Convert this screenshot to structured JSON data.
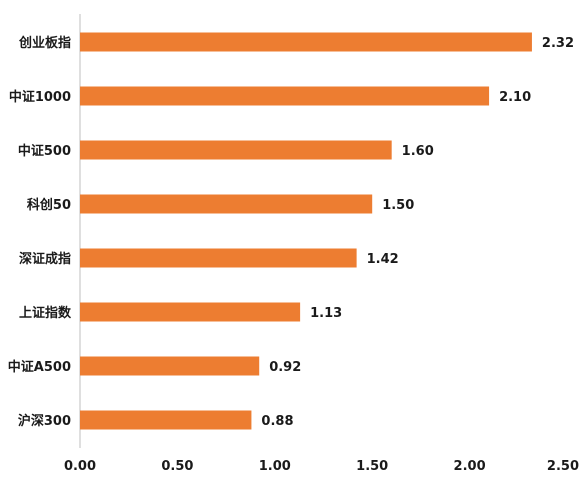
{
  "chart_data": {
    "type": "bar",
    "orientation": "horizontal",
    "title": "",
    "xlabel": "",
    "ylabel": "",
    "categories": [
      "创业板指",
      "中证1000",
      "中证500",
      "科创50",
      "深证成指",
      "上证指数",
      "中证A500",
      "沪深300"
    ],
    "values": [
      2.32,
      2.1,
      1.6,
      1.5,
      1.42,
      1.13,
      0.92,
      0.88
    ],
    "value_labels": [
      "2.32",
      "2.10",
      "1.60",
      "1.50",
      "1.42",
      "1.13",
      "0.92",
      "0.88"
    ],
    "xlim": [
      0,
      2.5
    ],
    "xticks": [
      0,
      0.5,
      1.0,
      1.5,
      2.0,
      2.5
    ],
    "xtick_labels": [
      "0.00",
      "0.50",
      "1.00",
      "1.50",
      "2.00",
      "2.50"
    ],
    "grid": false,
    "legend": "none",
    "bar_color": "#ED7D31",
    "axis_color": "#bfbfbf"
  }
}
